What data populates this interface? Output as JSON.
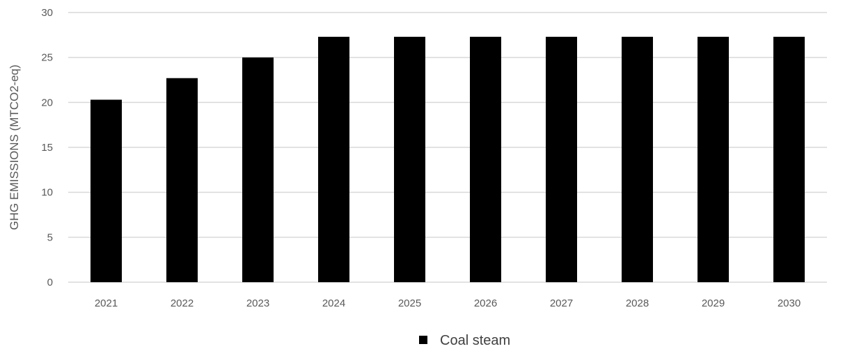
{
  "chart_data": {
    "type": "bar",
    "title": "",
    "xlabel": "",
    "ylabel": "GHG EMISSIONS (MTCO2-eq)",
    "categories": [
      "2021",
      "2022",
      "2023",
      "2024",
      "2025",
      "2026",
      "2027",
      "2028",
      "2029",
      "2030"
    ],
    "series": [
      {
        "name": "Coal steam",
        "color": "#000000",
        "values": [
          20.3,
          22.7,
          25.0,
          27.3,
          27.3,
          27.3,
          27.3,
          27.3,
          27.3,
          27.3
        ]
      }
    ],
    "ylim": [
      0,
      30
    ],
    "yticks": [
      0,
      5,
      10,
      15,
      20,
      25,
      30
    ],
    "grid": true,
    "grid_color": "#d9d9d9",
    "legend_position": "bottom-center"
  }
}
